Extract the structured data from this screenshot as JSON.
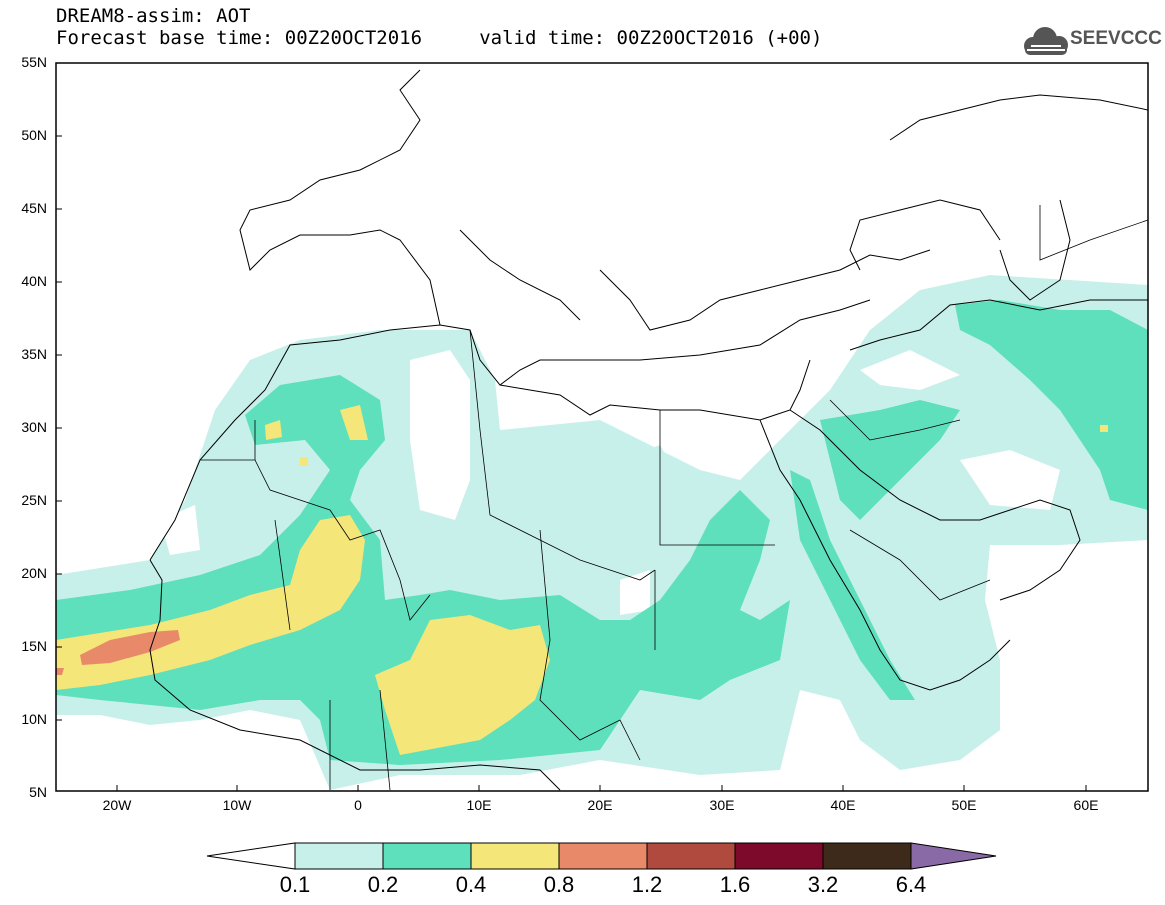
{
  "header": {
    "line1": "DREAM8-assim: AOT",
    "line2": "Forecast base time: 00Z20OCT2016     valid time: 00Z20OCT2016 (+00)"
  },
  "logo": {
    "text": "SEEVCCC",
    "icon": "cloud-icon",
    "color": "#555555"
  },
  "axes": {
    "lat_labels": [
      "55N",
      "50N",
      "45N",
      "40N",
      "35N",
      "30N",
      "25N",
      "20N",
      "15N",
      "10N",
      "5N"
    ],
    "lon_labels": [
      "20W",
      "10W",
      "0",
      "10E",
      "20E",
      "30E",
      "40E",
      "50E",
      "60E"
    ]
  },
  "colorbar": {
    "labels": [
      "0.1",
      "0.2",
      "0.4",
      "0.8",
      "1.2",
      "1.6",
      "3.2",
      "6.4"
    ],
    "colors": [
      "#ffffff",
      "#c8f0ea",
      "#5de0bb",
      "#f5e679",
      "#e8896a",
      "#b04a3e",
      "#7d0a2a",
      "#3d2a1a",
      "#8a6aa6"
    ]
  }
}
